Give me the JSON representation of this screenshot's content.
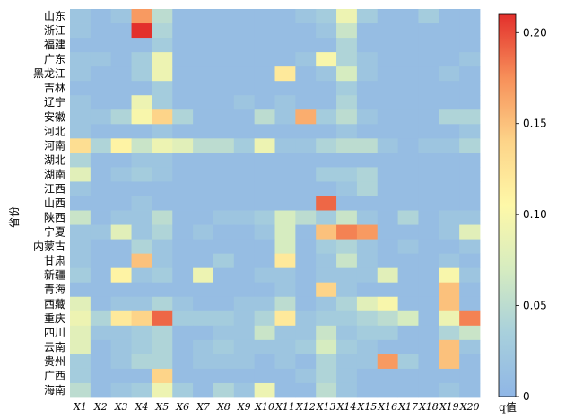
{
  "chart_data": {
    "type": "heatmap",
    "ylabel": "省份",
    "colorbar_label": "q值",
    "colorbar_ticks": [
      "0",
      "0.05",
      "0.10",
      "0.15",
      "0.20"
    ],
    "colorbar_range": [
      0,
      0.21
    ],
    "colormap": [
      "#8fb6e6",
      "#a8d0dc",
      "#d6ecc0",
      "#fef8a8",
      "#fdd489",
      "#f7905a",
      "#e3302c"
    ],
    "x_categories": [
      "X1",
      "X2",
      "X3",
      "X4",
      "X5",
      "X6",
      "X7",
      "X8",
      "X9",
      "X10",
      "X11",
      "X12",
      "X13",
      "X14",
      "X15",
      "X16",
      "X17",
      "X18",
      "X19",
      "X20"
    ],
    "y_categories": [
      "山东",
      "浙江",
      "福建",
      "广东",
      "黑龙江",
      "吉林",
      "辽宁",
      "安徽",
      "河北",
      "河南",
      "湖北",
      "湖南",
      "江西",
      "山西",
      "陕西",
      "宁夏",
      "内蒙古",
      "甘肃",
      "新疆",
      "青海",
      "西藏",
      "重庆",
      "四川",
      "云南",
      "贵州",
      "广西",
      "海南"
    ],
    "values": [
      [
        0.02,
        0.01,
        0.02,
        0.17,
        0.05,
        0.01,
        0.01,
        0.01,
        0.01,
        0.01,
        0.01,
        0.02,
        0.03,
        0.09,
        0.03,
        0.01,
        0.01,
        0.03,
        0.01,
        0.01
      ],
      [
        0.02,
        0.01,
        0.01,
        0.21,
        0.04,
        0.01,
        0.01,
        0.01,
        0.01,
        0.01,
        0.01,
        0.01,
        0.02,
        0.06,
        0.01,
        0.01,
        0.01,
        0.01,
        0.01,
        0.01
      ],
      [
        0.01,
        0.01,
        0.01,
        0.01,
        0.03,
        0.01,
        0.01,
        0.01,
        0.01,
        0.01,
        0.01,
        0.01,
        0.01,
        0.04,
        0.01,
        0.01,
        0.01,
        0.01,
        0.01,
        0.01
      ],
      [
        0.02,
        0.02,
        0.01,
        0.03,
        0.09,
        0.01,
        0.01,
        0.01,
        0.01,
        0.01,
        0.01,
        0.02,
        0.1,
        0.04,
        0.02,
        0.01,
        0.01,
        0.01,
        0.01,
        0.02
      ],
      [
        0.02,
        0.01,
        0.01,
        0.03,
        0.09,
        0.01,
        0.01,
        0.01,
        0.01,
        0.01,
        0.12,
        0.01,
        0.02,
        0.07,
        0.02,
        0.01,
        0.01,
        0.01,
        0.02,
        0.01
      ],
      [
        0.01,
        0.01,
        0.01,
        0.01,
        0.03,
        0.01,
        0.01,
        0.01,
        0.01,
        0.01,
        0.01,
        0.01,
        0.01,
        0.03,
        0.01,
        0.01,
        0.01,
        0.01,
        0.01,
        0.01
      ],
      [
        0.02,
        0.01,
        0.01,
        0.09,
        0.03,
        0.01,
        0.01,
        0.01,
        0.02,
        0.01,
        0.02,
        0.01,
        0.01,
        0.04,
        0.01,
        0.01,
        0.01,
        0.01,
        0.01,
        0.01
      ],
      [
        0.02,
        0.02,
        0.04,
        0.1,
        0.14,
        0.04,
        0.01,
        0.01,
        0.01,
        0.05,
        0.02,
        0.16,
        0.03,
        0.05,
        0.02,
        0.01,
        0.01,
        0.01,
        0.04,
        0.04
      ],
      [
        0.02,
        0.01,
        0.01,
        0.01,
        0.02,
        0.01,
        0.01,
        0.01,
        0.01,
        0.01,
        0.01,
        0.01,
        0.01,
        0.02,
        0.01,
        0.01,
        0.01,
        0.01,
        0.01,
        0.02
      ],
      [
        0.13,
        0.04,
        0.11,
        0.06,
        0.09,
        0.08,
        0.05,
        0.05,
        0.03,
        0.09,
        0.02,
        0.02,
        0.04,
        0.05,
        0.05,
        0.02,
        0.01,
        0.02,
        0.02,
        0.04
      ],
      [
        0.04,
        0.01,
        0.01,
        0.02,
        0.02,
        0.01,
        0.01,
        0.01,
        0.01,
        0.01,
        0.01,
        0.01,
        0.01,
        0.01,
        0.01,
        0.01,
        0.01,
        0.01,
        0.01,
        0.01
      ],
      [
        0.08,
        0.01,
        0.02,
        0.03,
        0.02,
        0.01,
        0.01,
        0.01,
        0.01,
        0.01,
        0.01,
        0.01,
        0.03,
        0.03,
        0.04,
        0.01,
        0.01,
        0.01,
        0.01,
        0.01
      ],
      [
        0.02,
        0.01,
        0.01,
        0.01,
        0.01,
        0.01,
        0.01,
        0.01,
        0.01,
        0.01,
        0.01,
        0.01,
        0.01,
        0.02,
        0.04,
        0.01,
        0.01,
        0.01,
        0.01,
        0.01
      ],
      [
        0.01,
        0.01,
        0.01,
        0.02,
        0.01,
        0.01,
        0.01,
        0.01,
        0.01,
        0.01,
        0.01,
        0.01,
        0.19,
        0.01,
        0.01,
        0.01,
        0.01,
        0.01,
        0.01,
        0.01
      ],
      [
        0.06,
        0.01,
        0.02,
        0.02,
        0.05,
        0.01,
        0.01,
        0.02,
        0.02,
        0.03,
        0.07,
        0.05,
        0.03,
        0.06,
        0.02,
        0.01,
        0.04,
        0.01,
        0.02,
        0.02
      ],
      [
        0.02,
        0.02,
        0.08,
        0.02,
        0.04,
        0.01,
        0.02,
        0.01,
        0.01,
        0.02,
        0.07,
        0.01,
        0.15,
        0.18,
        0.17,
        0.01,
        0.01,
        0.01,
        0.02,
        0.08
      ],
      [
        0.02,
        0.01,
        0.01,
        0.04,
        0.02,
        0.01,
        0.01,
        0.01,
        0.01,
        0.01,
        0.07,
        0.01,
        0.03,
        0.04,
        0.02,
        0.01,
        0.02,
        0.01,
        0.01,
        0.02
      ],
      [
        0.02,
        0.01,
        0.01,
        0.15,
        0.02,
        0.01,
        0.01,
        0.03,
        0.01,
        0.01,
        0.12,
        0.01,
        0.02,
        0.06,
        0.02,
        0.01,
        0.01,
        0.01,
        0.02,
        0.01
      ],
      [
        0.03,
        0.01,
        0.11,
        0.02,
        0.03,
        0.01,
        0.09,
        0.01,
        0.01,
        0.02,
        0.02,
        0.01,
        0.02,
        0.02,
        0.02,
        0.08,
        0.01,
        0.01,
        0.1,
        0.02
      ],
      [
        0.01,
        0.01,
        0.01,
        0.01,
        0.01,
        0.01,
        0.01,
        0.01,
        0.01,
        0.01,
        0.02,
        0.01,
        0.14,
        0.02,
        0.01,
        0.01,
        0.01,
        0.01,
        0.15,
        0.01
      ],
      [
        0.08,
        0.01,
        0.02,
        0.02,
        0.04,
        0.02,
        0.01,
        0.01,
        0.02,
        0.02,
        0.05,
        0.01,
        0.02,
        0.04,
        0.08,
        0.1,
        0.01,
        0.01,
        0.15,
        0.01
      ],
      [
        0.09,
        0.04,
        0.12,
        0.14,
        0.19,
        0.03,
        0.03,
        0.03,
        0.02,
        0.04,
        0.12,
        0.02,
        0.03,
        0.03,
        0.04,
        0.05,
        0.07,
        0.01,
        0.09,
        0.18
      ],
      [
        0.08,
        0.02,
        0.02,
        0.03,
        0.04,
        0.01,
        0.01,
        0.02,
        0.02,
        0.06,
        0.02,
        0.02,
        0.06,
        0.02,
        0.03,
        0.03,
        0.01,
        0.01,
        0.04,
        0.06
      ],
      [
        0.08,
        0.01,
        0.02,
        0.03,
        0.04,
        0.01,
        0.02,
        0.03,
        0.02,
        0.02,
        0.02,
        0.03,
        0.07,
        0.03,
        0.02,
        0.01,
        0.01,
        0.01,
        0.15,
        0.02
      ],
      [
        0.03,
        0.01,
        0.02,
        0.04,
        0.04,
        0.01,
        0.02,
        0.02,
        0.02,
        0.01,
        0.02,
        0.01,
        0.04,
        0.02,
        0.02,
        0.17,
        0.03,
        0.01,
        0.15,
        0.01
      ],
      [
        0.03,
        0.01,
        0.01,
        0.01,
        0.14,
        0.01,
        0.01,
        0.01,
        0.01,
        0.01,
        0.01,
        0.02,
        0.04,
        0.02,
        0.01,
        0.01,
        0.01,
        0.01,
        0.01,
        0.01
      ],
      [
        0.05,
        0.01,
        0.02,
        0.03,
        0.09,
        0.03,
        0.01,
        0.04,
        0.02,
        0.09,
        0.01,
        0.01,
        0.05,
        0.02,
        0.01,
        0.01,
        0.01,
        0.01,
        0.02,
        0.01
      ]
    ]
  }
}
